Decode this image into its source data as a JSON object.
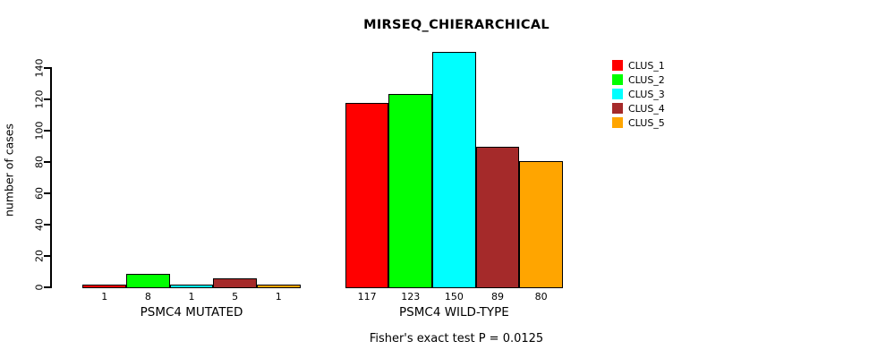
{
  "title": "MIRSEQ_CHIERARCHICAL",
  "footnote": "Fisher's exact test P = 0.0125",
  "y_axis_label": "number of cases",
  "chart_data": {
    "type": "bar",
    "title": "MIRSEQ_CHIERARCHICAL",
    "xlabel": "",
    "ylabel": "number of cases",
    "yticks": [
      0,
      20,
      40,
      60,
      80,
      100,
      120,
      140
    ],
    "ylim": [
      0,
      150
    ],
    "grid": false,
    "legend_position": "top-right-inside",
    "bar_value_labels": true,
    "categories": [
      "PSMC4 MUTATED",
      "PSMC4 WILD-TYPE"
    ],
    "series": [
      {
        "name": "CLUS_1",
        "color": "#ff0000",
        "values": [
          1,
          117
        ]
      },
      {
        "name": "CLUS_2",
        "color": "#00ff00",
        "values": [
          8,
          123
        ]
      },
      {
        "name": "CLUS_3",
        "color": "#00ffff",
        "values": [
          1,
          150
        ]
      },
      {
        "name": "CLUS_4",
        "color": "#a52a2a",
        "values": [
          5,
          89
        ]
      },
      {
        "name": "CLUS_5",
        "color": "#ffa500",
        "values": [
          1,
          80
        ]
      }
    ],
    "annotation": "Fisher's exact test P = 0.0125"
  }
}
